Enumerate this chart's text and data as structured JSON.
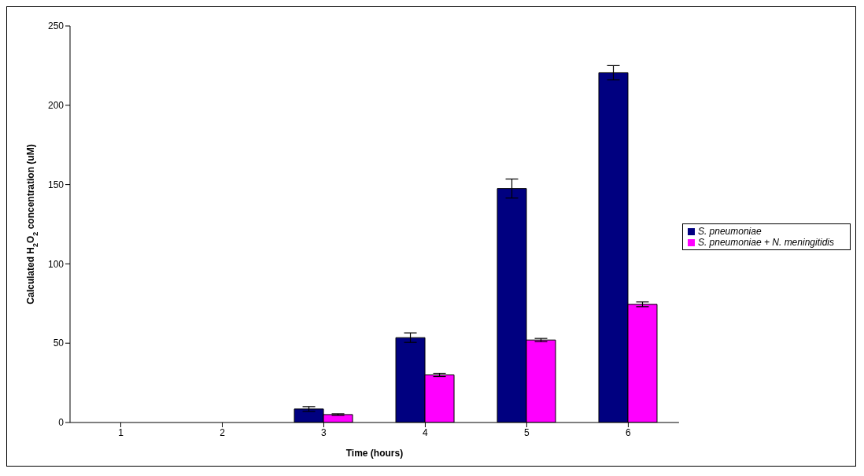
{
  "chart_data": {
    "type": "bar",
    "xlabel": "Time (hours)",
    "ylabel": "Calculated H$_{2}$O$_{2}$ concentration (uM)",
    "categories": [
      "1",
      "2",
      "3",
      "4",
      "5",
      "6"
    ],
    "series": [
      {
        "name": "S. pneumoniae",
        "color": "#000080",
        "values": [
          0,
          0,
          8.5,
          53.5,
          147.5,
          220.5
        ],
        "errors": [
          null,
          null,
          1.5,
          3,
          6,
          4.5
        ]
      },
      {
        "name": "S. pneumoniae + N. meningitidis",
        "color": "#ff00ff",
        "values": [
          0,
          0,
          5,
          30,
          52,
          74.5
        ],
        "errors": [
          null,
          null,
          0.5,
          1,
          1,
          1.5
        ]
      }
    ],
    "ylim": [
      0,
      250
    ],
    "yticks": [
      0,
      50,
      100,
      150,
      200,
      250
    ],
    "legend": "right"
  }
}
